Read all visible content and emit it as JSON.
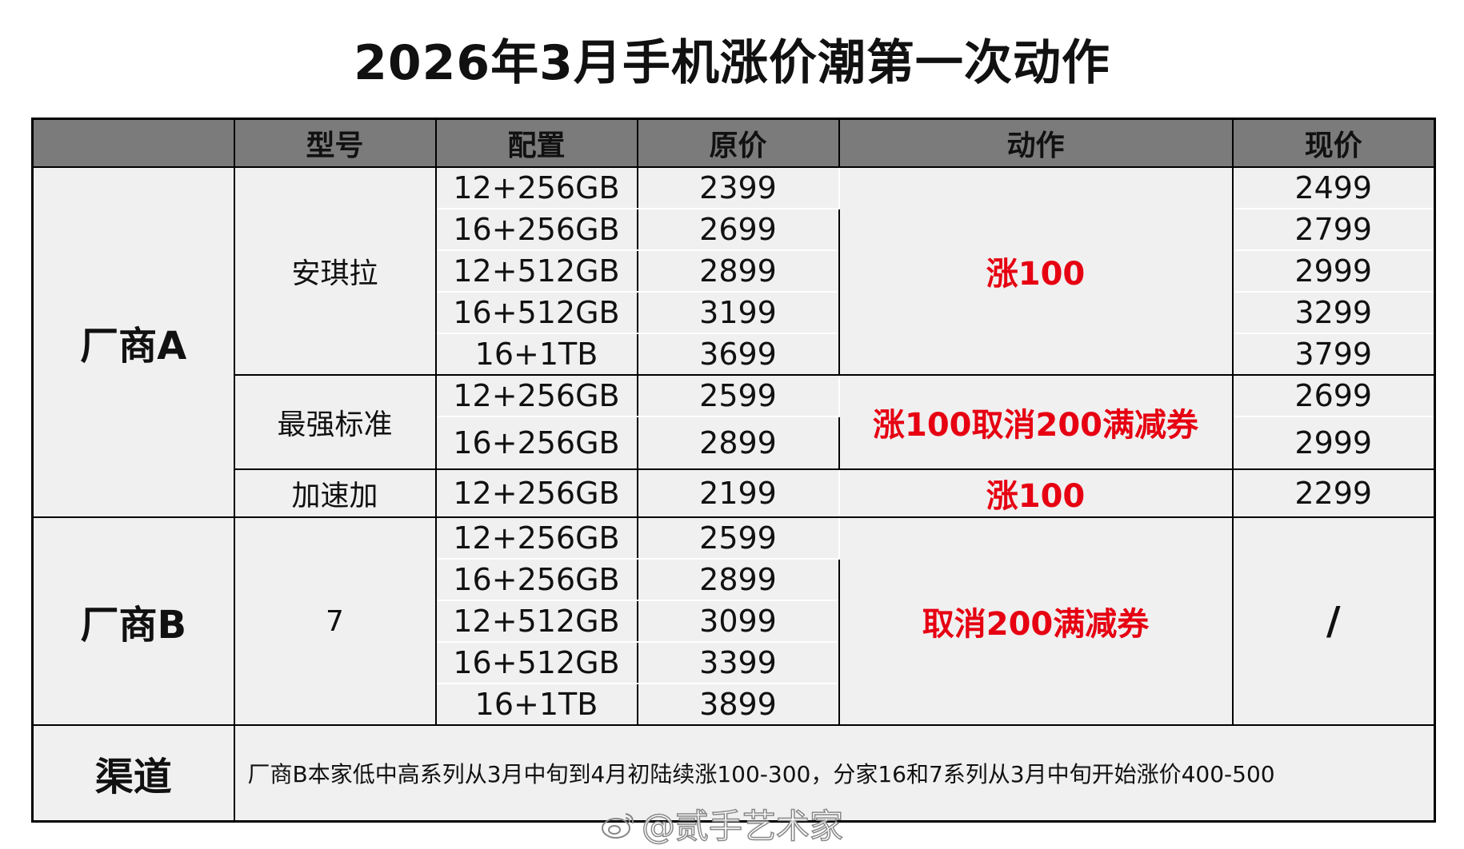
{
  "title": "2026年3月手机涨价潮第一次动作",
  "headers": [
    "",
    "型号",
    "配置",
    "原价",
    "动作",
    "现价"
  ],
  "vendor_a": {
    "name": "厂商A",
    "model1": {
      "name": "安琪拉",
      "action": "涨100",
      "rows": [
        {
          "config": "12+256GB",
          "orig": "2399",
          "now": "2499"
        },
        {
          "config": "16+256GB",
          "orig": "2699",
          "now": "2799"
        },
        {
          "config": "12+512GB",
          "orig": "2899",
          "now": "2999"
        },
        {
          "config": "16+512GB",
          "orig": "3199",
          "now": "3299"
        },
        {
          "config": "16+1TB",
          "orig": "3699",
          "now": "3799"
        }
      ]
    },
    "model2": {
      "name": "最强标准",
      "action": "涨100取消200满减券",
      "rows": [
        {
          "config": "12+256GB",
          "orig": "2599",
          "now": "2699"
        },
        {
          "config": "16+256GB",
          "orig": "2899",
          "now": "2999"
        }
      ]
    },
    "model3": {
      "name": "加速加",
      "action": "涨100",
      "rows": [
        {
          "config": "12+256GB",
          "orig": "2199",
          "now": "2299"
        }
      ]
    }
  },
  "vendor_b": {
    "name": "厂商B",
    "model1": {
      "name": "7",
      "action": "取消200满减券",
      "now": "/",
      "rows": [
        {
          "config": "12+256GB",
          "orig": "2599"
        },
        {
          "config": "16+256GB",
          "orig": "2899"
        },
        {
          "config": "12+512GB",
          "orig": "3099"
        },
        {
          "config": "16+512GB",
          "orig": "3399"
        },
        {
          "config": "16+1TB",
          "orig": "3899"
        }
      ]
    }
  },
  "channel": {
    "label": "渠道",
    "text": "厂商B本家低中高系列从3月中旬到4月初陆续涨100-300，分家16和7系列从3月中旬开始涨价400-500"
  },
  "watermark": "@贰手艺术家",
  "colors": {
    "header_bg": "#7b7b7b",
    "cell_bg": "#f0f0f0",
    "action_red": "#e60012"
  }
}
